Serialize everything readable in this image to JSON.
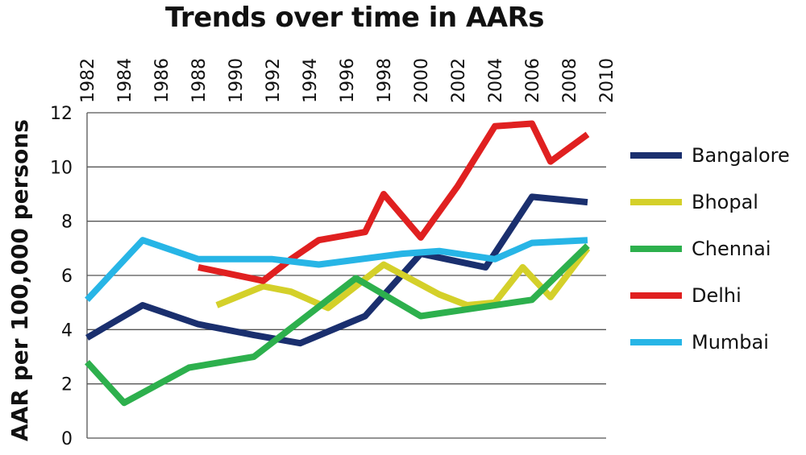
{
  "chart_data": {
    "type": "line",
    "title": "Trends over time in AARs",
    "xlabel": "",
    "ylabel": "AAR per 100,000 persons",
    "x_ticks": [
      "1982",
      "1984",
      "1986",
      "1988",
      "1990",
      "1992",
      "1994",
      "1996",
      "1998",
      "2000",
      "2002",
      "2004",
      "2006",
      "2008",
      "2010"
    ],
    "xlim": [
      1982,
      2010
    ],
    "ylim": [
      0,
      12
    ],
    "y_ticks": [
      0,
      2,
      4,
      6,
      8,
      10,
      12
    ],
    "grid": "horizontal",
    "legend_position": "right",
    "series": [
      {
        "name": "Bangalore",
        "color": "#1a2f6e",
        "points": [
          [
            1982,
            3.7
          ],
          [
            1985,
            4.9
          ],
          [
            1988,
            4.2
          ],
          [
            1991,
            3.8
          ],
          [
            1993.5,
            3.5
          ],
          [
            1997,
            4.5
          ],
          [
            2000,
            6.8
          ],
          [
            2003.5,
            6.3
          ],
          [
            2006,
            8.9
          ],
          [
            2009,
            8.7
          ]
        ]
      },
      {
        "name": "Bhopal",
        "color": "#d4d02a",
        "points": [
          [
            1989,
            4.9
          ],
          [
            1991.5,
            5.6
          ],
          [
            1993,
            5.4
          ],
          [
            1995,
            4.8
          ],
          [
            1998,
            6.4
          ],
          [
            2001,
            5.3
          ],
          [
            2002.5,
            4.9
          ],
          [
            2004,
            5.0
          ],
          [
            2005.5,
            6.3
          ],
          [
            2007,
            5.2
          ],
          [
            2009,
            7.0
          ]
        ]
      },
      {
        "name": "Chennai",
        "color": "#2db04d",
        "points": [
          [
            1982,
            2.8
          ],
          [
            1984,
            1.3
          ],
          [
            1987.5,
            2.6
          ],
          [
            1991,
            3.0
          ],
          [
            1996.5,
            5.9
          ],
          [
            2000,
            4.5
          ],
          [
            2003,
            4.8
          ],
          [
            2006,
            5.1
          ],
          [
            2009,
            7.1
          ]
        ]
      },
      {
        "name": "Delhi",
        "color": "#e02020",
        "points": [
          [
            1988,
            6.3
          ],
          [
            1991.5,
            5.8
          ],
          [
            1993,
            6.6
          ],
          [
            1994.5,
            7.3
          ],
          [
            1997,
            7.6
          ],
          [
            1998,
            9.0
          ],
          [
            2000,
            7.4
          ],
          [
            2002,
            9.3
          ],
          [
            2004,
            11.5
          ],
          [
            2006,
            11.6
          ],
          [
            2007,
            10.2
          ],
          [
            2009,
            11.2
          ]
        ]
      },
      {
        "name": "Mumbai",
        "color": "#27b5e6",
        "points": [
          [
            1982,
            5.1
          ],
          [
            1985,
            7.3
          ],
          [
            1988,
            6.6
          ],
          [
            1992,
            6.6
          ],
          [
            1994.5,
            6.4
          ],
          [
            1999,
            6.8
          ],
          [
            2001,
            6.9
          ],
          [
            2004,
            6.6
          ],
          [
            2006,
            7.2
          ],
          [
            2009,
            7.3
          ]
        ]
      }
    ]
  }
}
